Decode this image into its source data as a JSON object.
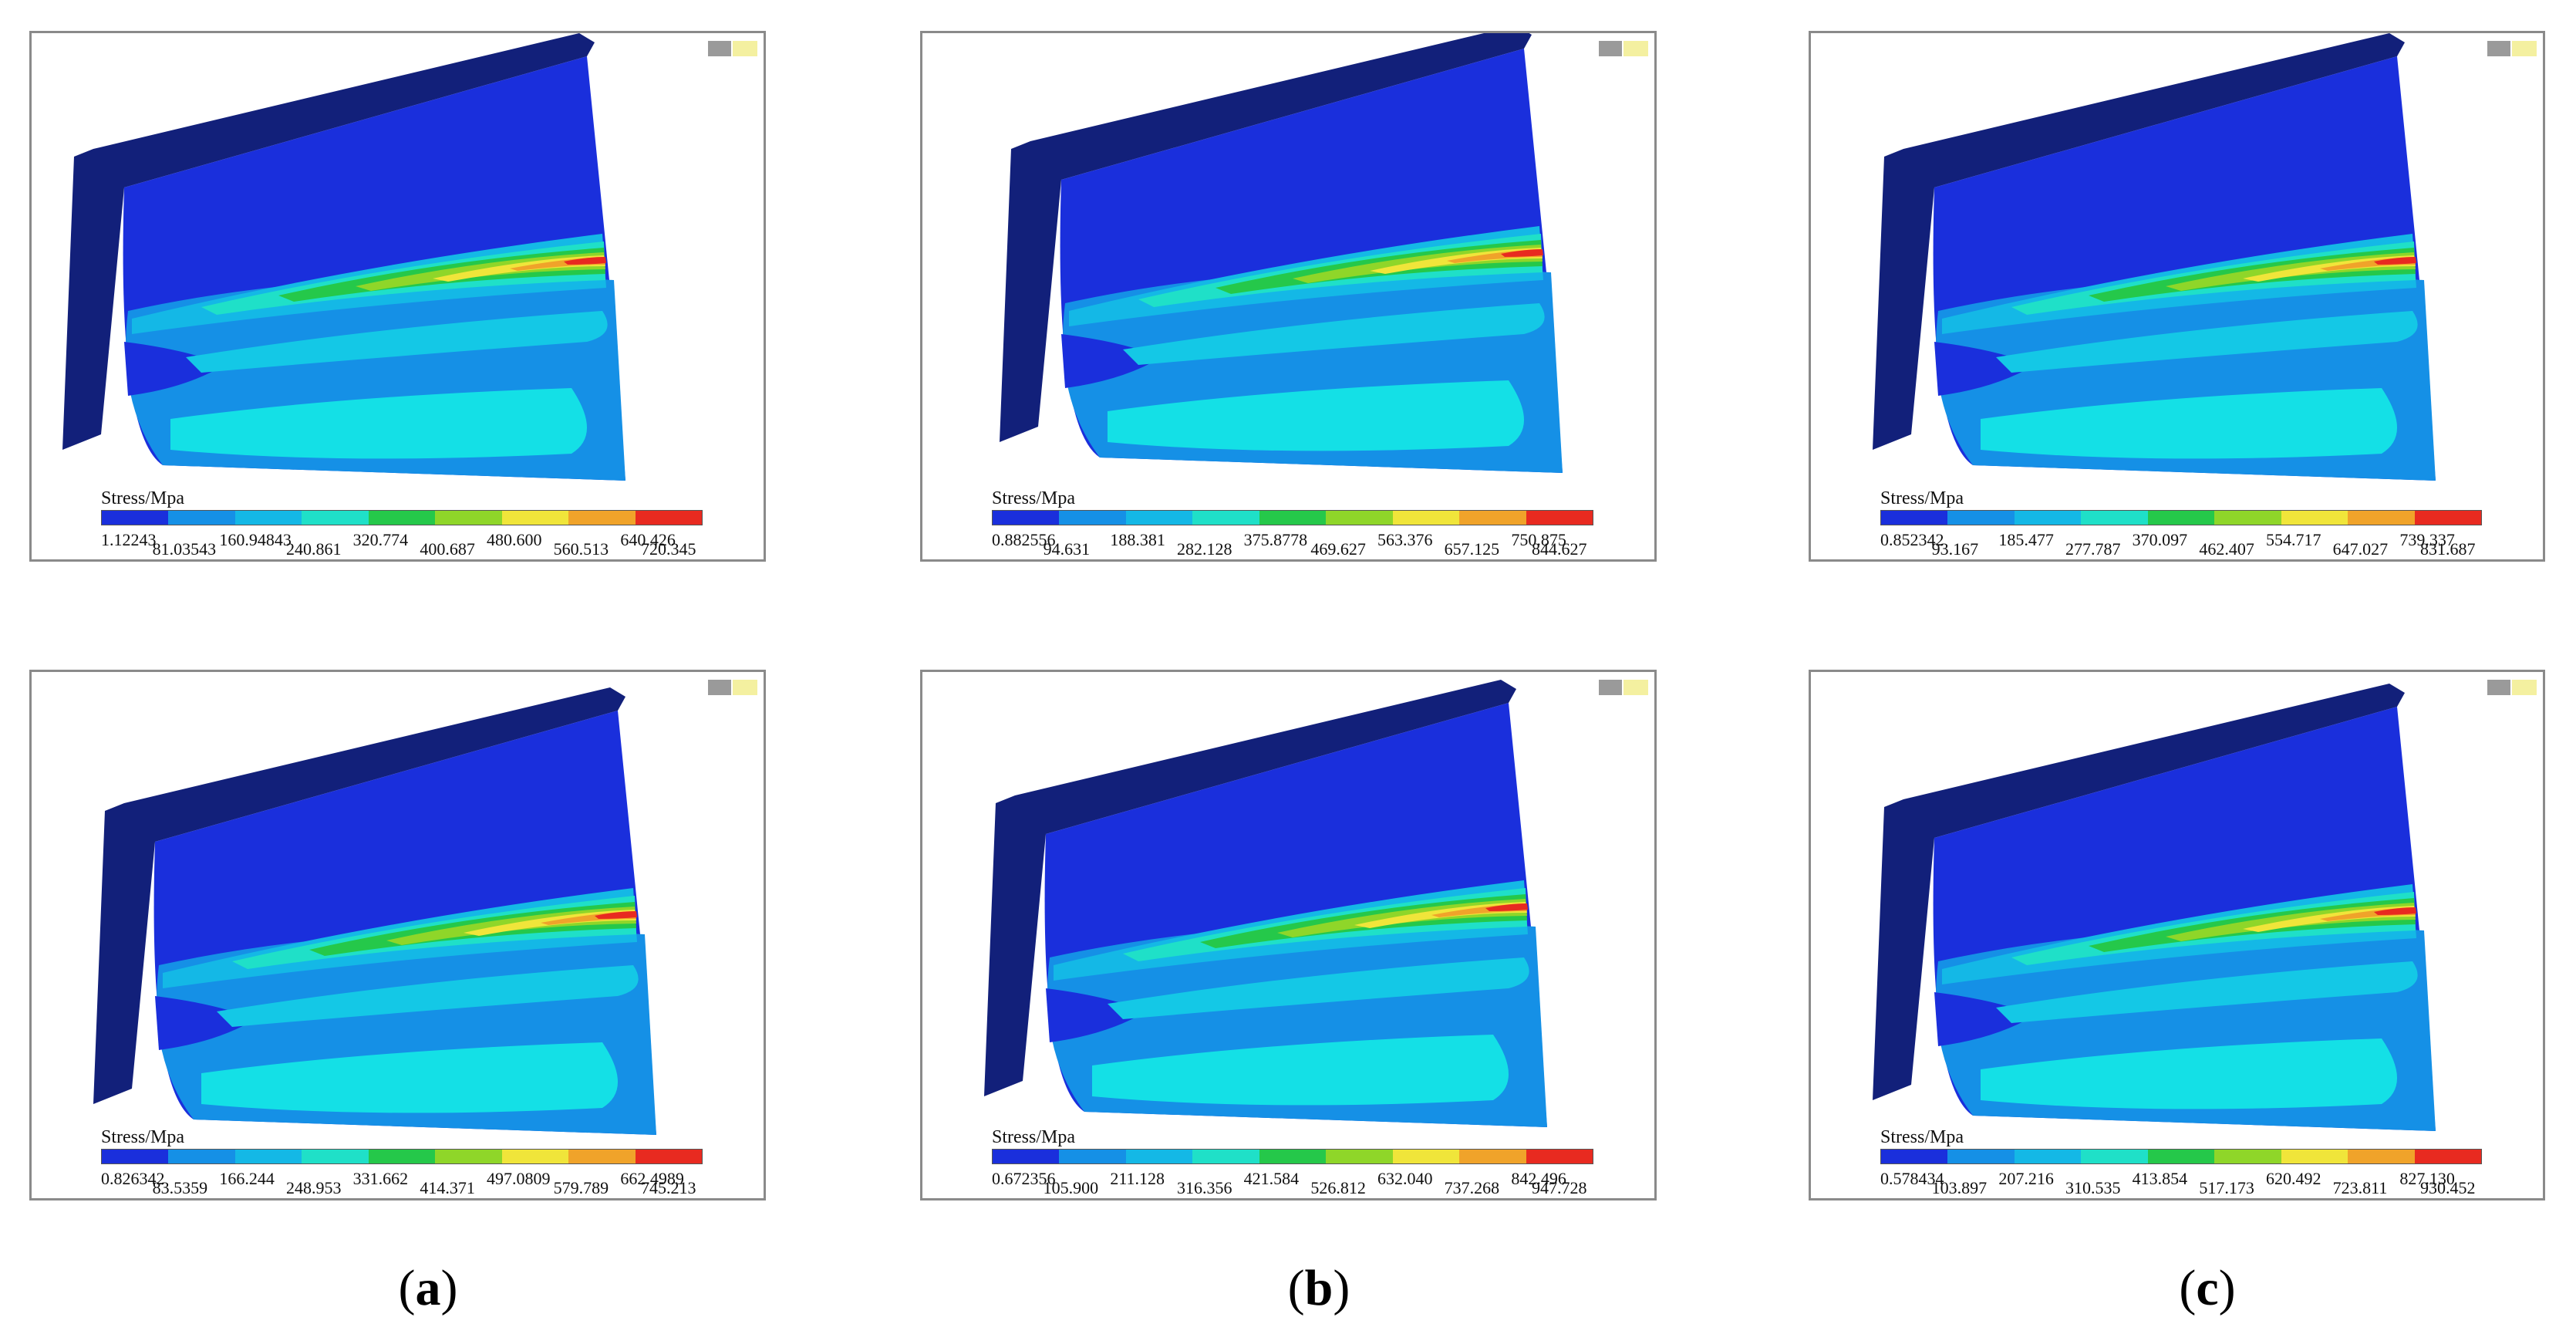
{
  "legend_colors": [
    "#1a2fdc",
    "#1590e6",
    "#14b8e6",
    "#1fe0c8",
    "#25c84a",
    "#8fd629",
    "#f0e53a",
    "#f0a32a",
    "#e82a20"
  ],
  "panels": [
    {
      "id": "a-top",
      "legend_title": "Stress/Mpa",
      "ticks": [
        "1.12243",
        "81.03543",
        "160.94843",
        "240.861",
        "320.774",
        "400.687",
        "480.600",
        "560.513",
        "640.426",
        "720.345"
      ]
    },
    {
      "id": "b-top",
      "legend_title": "Stress/Mpa",
      "ticks": [
        "0.882556",
        "94.631",
        "188.381",
        "282.128",
        "375.8778",
        "469.627",
        "563.376",
        "657.125",
        "750.875",
        "844.627"
      ]
    },
    {
      "id": "c-top",
      "legend_title": "Stress/Mpa",
      "ticks": [
        "0.852342",
        "93.167",
        "185.477",
        "277.787",
        "370.097",
        "462.407",
        "554.717",
        "647.027",
        "739.337",
        "831.687"
      ]
    },
    {
      "id": "a-bottom",
      "legend_title": "Stress/Mpa",
      "ticks": [
        "0.826342",
        "83.5359",
        "166.244",
        "248.953",
        "331.662",
        "414.371",
        "497.0809",
        "579.789",
        "662.4989",
        "745.213"
      ]
    },
    {
      "id": "b-bottom",
      "legend_title": "Stress/Mpa",
      "ticks": [
        "0.672356",
        "105.900",
        "211.128",
        "316.356",
        "421.584",
        "526.812",
        "632.040",
        "737.268",
        "842.496",
        "947.728"
      ]
    },
    {
      "id": "c-bottom",
      "legend_title": "Stress/Mpa",
      "ticks": [
        "0.578434",
        "103.897",
        "207.216",
        "310.535",
        "413.854",
        "517.173",
        "620.492",
        "723.811",
        "827.130",
        "930.452"
      ]
    }
  ],
  "captions": [
    {
      "open": "(",
      "letter": "a",
      "close": ")"
    },
    {
      "open": "(",
      "letter": "b",
      "close": ")"
    },
    {
      "open": "(",
      "letter": "c",
      "close": ")"
    }
  ]
}
